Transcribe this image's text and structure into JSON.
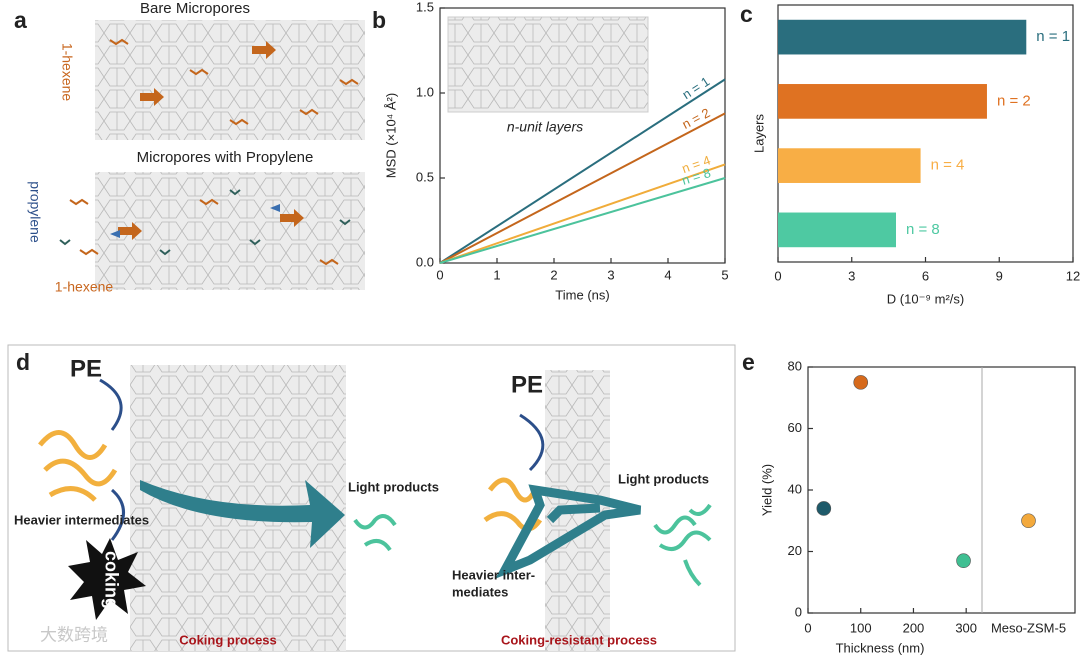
{
  "panel_labels": [
    "a",
    "b",
    "c",
    "d",
    "e"
  ],
  "panel_a": {
    "top_title": "Bare Micropores",
    "bottom_title": "Micropores with Propylene",
    "hexene_top": "1-hexene",
    "propylene": "propylene",
    "hexene_bottom": "1-hexene"
  },
  "panel_d": {
    "pe_left": "PE",
    "pe_right": "PE",
    "heavier_left": "Heavier intermediates",
    "coking": "coking",
    "light_left": "Light products",
    "light_right": "Light products",
    "heavier_right_1": "Heavier inter-",
    "heavier_right_2": "mediates",
    "caption_left": "Coking process",
    "caption_right": "Coking-resistant process"
  },
  "watermark": "大数跨境",
  "chart_data": [
    {
      "type": "line",
      "xlabel": "Time (ns)",
      "ylabel": "MSD (×10⁴ Å²)",
      "inset_label": "n-unit layers",
      "xlim": [
        0,
        5
      ],
      "xticks": [
        0,
        1,
        2,
        3,
        4,
        5
      ],
      "ylim": [
        0,
        1.5
      ],
      "yticks": [
        {
          "value": 0,
          "label": "0.0"
        },
        0.5,
        {
          "value": 1,
          "label": "1.0"
        },
        1.5
      ],
      "series": [
        {
          "name": "n = 1",
          "color": "#2a6e7e",
          "x": [
            0,
            5
          ],
          "values": [
            0,
            1.08
          ]
        },
        {
          "name": "n = 2",
          "color": "#c4661c",
          "x": [
            0,
            5
          ],
          "values": [
            0,
            0.88
          ]
        },
        {
          "name": "n = 4",
          "color": "#f0ac3a",
          "x": [
            0,
            5
          ],
          "values": [
            0,
            0.58
          ]
        },
        {
          "name": "n = 8",
          "color": "#4cc39c",
          "x": [
            0,
            5
          ],
          "values": [
            0,
            0.5
          ]
        }
      ]
    },
    {
      "type": "hbar",
      "xlabel": "D (10⁻⁹ m²/s)",
      "ylabel": "Layers",
      "categories": [
        "n = 1",
        "n = 2",
        "n = 4",
        "n = 8"
      ],
      "values": [
        10.1,
        8.5,
        5.8,
        4.8
      ],
      "colors": [
        "#2a6e7e",
        "#df7222",
        "#f8ae45",
        "#4ec9a2"
      ],
      "xlim": [
        0,
        12
      ],
      "xticks": [
        0,
        3,
        6,
        9,
        12
      ]
    },
    {
      "type": "scatter",
      "xlabel": "Thickness (nm)",
      "ylabel": "Yield (%)",
      "x": [
        30,
        100,
        295,
        "Meso-ZSM-5"
      ],
      "values": [
        34,
        75,
        17,
        30
      ],
      "colors": [
        "#1e5a6a",
        "#d66a1c",
        "#3fbf92",
        "#f3a93c"
      ],
      "xlim": [
        0,
        330
      ],
      "xticks": [
        0,
        100,
        200,
        300
      ],
      "ylim": [
        0,
        80
      ],
      "yticks": [
        0,
        20,
        40,
        60,
        80
      ]
    }
  ]
}
